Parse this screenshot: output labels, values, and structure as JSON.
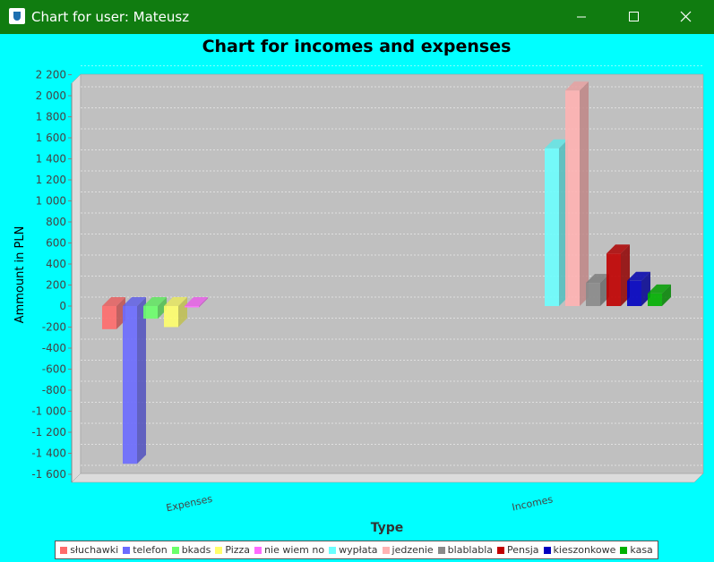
{
  "window": {
    "title": "Chart for user: Mateusz",
    "titlebar_color": "#107c10",
    "background_color": "#00ffff",
    "icon": "java-cup-icon",
    "controls": [
      "minimize-icon",
      "maximize-icon",
      "close-icon"
    ]
  },
  "chart_data": {
    "type": "bar",
    "style": "3d",
    "title": "Chart for incomes and expenses",
    "xlabel": "Type",
    "ylabel": "Ammount in PLN",
    "categories": [
      "Expenses",
      "Incomes"
    ],
    "ylim": [
      -1650,
      2250
    ],
    "yticks": [
      -1600,
      -1400,
      -1200,
      -1000,
      -800,
      -600,
      -400,
      -200,
      0,
      200,
      400,
      600,
      800,
      1000,
      1200,
      1400,
      1600,
      1800,
      2000,
      2200
    ],
    "ytick_labels": [
      "-1 600",
      "-1 400",
      "-1 200",
      "-1 000",
      "-800",
      "-600",
      "-400",
      "-200",
      "0",
      "200",
      "400",
      "600",
      "800",
      "1 000",
      "1 200",
      "1 400",
      "1 600",
      "1 800",
      "2 000",
      "2 200"
    ],
    "plot_background": "#c0c0c0",
    "grid": true,
    "legend_position": "bottom",
    "series": [
      {
        "name": "słuchawki",
        "color": "#ff6b6b",
        "values": [
          -220,
          null
        ]
      },
      {
        "name": "telefon",
        "color": "#6b6bff",
        "values": [
          -1500,
          null
        ]
      },
      {
        "name": "bkads",
        "color": "#6bff6b",
        "values": [
          -120,
          null
        ]
      },
      {
        "name": "Pizza",
        "color": "#ffff6b",
        "values": [
          -200,
          null
        ]
      },
      {
        "name": "nie wiem no",
        "color": "#ff6bff",
        "values": [
          -10,
          null
        ]
      },
      {
        "name": "wypłata",
        "color": "#6bffff",
        "values": [
          null,
          1500
        ]
      },
      {
        "name": "jedzenie",
        "color": "#ffb3b3",
        "values": [
          null,
          2050
        ]
      },
      {
        "name": "blablabla",
        "color": "#8a8a8a",
        "values": [
          null,
          220
        ]
      },
      {
        "name": "Pensja",
        "color": "#c00000",
        "values": [
          null,
          500
        ]
      },
      {
        "name": "kieszonkowe",
        "color": "#0000c0",
        "values": [
          null,
          240
        ]
      },
      {
        "name": "kasa",
        "color": "#00b000",
        "values": [
          null,
          120
        ]
      }
    ]
  }
}
